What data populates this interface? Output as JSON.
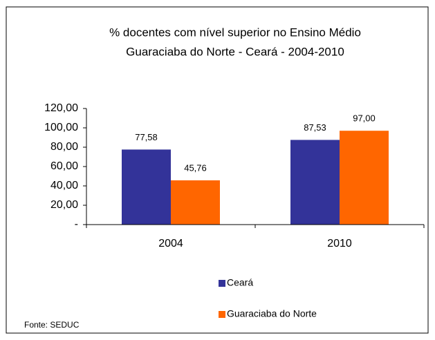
{
  "chart_data": {
    "type": "bar",
    "title": "% docentes com nível  superior no Ensino Médio",
    "subtitle": "Guaraciaba do Norte -  Ceará - 2004-2010",
    "categories": [
      "2004",
      "2010"
    ],
    "series": [
      {
        "name": "Ceará",
        "color": "#333399",
        "values": [
          77.58,
          87.53
        ],
        "value_labels": [
          "77,58",
          "87,53"
        ]
      },
      {
        "name": "Guaraciaba do Norte",
        "color": "#ff6600",
        "values": [
          45.76,
          97.0
        ],
        "value_labels": [
          "45,76",
          "97,00"
        ]
      }
    ],
    "ylim": [
      0,
      120
    ],
    "yticks": [
      {
        "value": 0,
        "label": "-"
      },
      {
        "value": 20,
        "label": "20,00"
      },
      {
        "value": 40,
        "label": "40,00"
      },
      {
        "value": 60,
        "label": "60,00"
      },
      {
        "value": 80,
        "label": "80,00"
      },
      {
        "value": 100,
        "label": "100,00"
      },
      {
        "value": 120,
        "label": "120,00"
      }
    ],
    "legend": "bottom",
    "source": "Fonte: SEDUC"
  }
}
